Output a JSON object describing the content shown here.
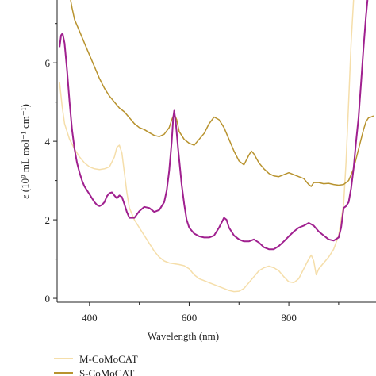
{
  "chart_data": {
    "type": "line",
    "xlabel": "Wavelength (nm)",
    "ylabel": "ε (10⁹ mL mol⁻¹ cm⁻¹)",
    "xlim": [
      335,
      975
    ],
    "ylim": [
      -0.1,
      7.6
    ],
    "x_ticks": [
      400,
      600,
      800
    ],
    "y_ticks": [
      0,
      2,
      4,
      6
    ],
    "grid": false,
    "legend_position": "bottom-left",
    "series": [
      {
        "name": "M-CoMoCAT",
        "color": "#f5deaa",
        "points": [
          [
            340,
            5.5
          ],
          [
            345,
            4.9
          ],
          [
            350,
            4.45
          ],
          [
            360,
            4.05
          ],
          [
            370,
            3.8
          ],
          [
            380,
            3.6
          ],
          [
            390,
            3.45
          ],
          [
            400,
            3.35
          ],
          [
            410,
            3.3
          ],
          [
            420,
            3.28
          ],
          [
            430,
            3.3
          ],
          [
            440,
            3.35
          ],
          [
            450,
            3.6
          ],
          [
            455,
            3.85
          ],
          [
            460,
            3.9
          ],
          [
            465,
            3.7
          ],
          [
            470,
            3.2
          ],
          [
            475,
            2.7
          ],
          [
            480,
            2.3
          ],
          [
            490,
            2.0
          ],
          [
            500,
            1.8
          ],
          [
            510,
            1.6
          ],
          [
            520,
            1.4
          ],
          [
            530,
            1.2
          ],
          [
            540,
            1.05
          ],
          [
            550,
            0.95
          ],
          [
            560,
            0.9
          ],
          [
            570,
            0.88
          ],
          [
            580,
            0.86
          ],
          [
            590,
            0.83
          ],
          [
            600,
            0.75
          ],
          [
            610,
            0.6
          ],
          [
            620,
            0.5
          ],
          [
            640,
            0.4
          ],
          [
            660,
            0.3
          ],
          [
            680,
            0.2
          ],
          [
            690,
            0.17
          ],
          [
            700,
            0.18
          ],
          [
            710,
            0.25
          ],
          [
            720,
            0.4
          ],
          [
            730,
            0.55
          ],
          [
            740,
            0.7
          ],
          [
            750,
            0.78
          ],
          [
            760,
            0.82
          ],
          [
            770,
            0.78
          ],
          [
            780,
            0.7
          ],
          [
            790,
            0.55
          ],
          [
            800,
            0.42
          ],
          [
            810,
            0.4
          ],
          [
            820,
            0.5
          ],
          [
            830,
            0.75
          ],
          [
            840,
            1.0
          ],
          [
            845,
            1.1
          ],
          [
            850,
            0.95
          ],
          [
            855,
            0.6
          ],
          [
            860,
            0.75
          ],
          [
            870,
            0.9
          ],
          [
            880,
            1.05
          ],
          [
            890,
            1.25
          ],
          [
            900,
            1.6
          ],
          [
            910,
            2.4
          ],
          [
            915,
            3.5
          ],
          [
            920,
            5.0
          ],
          [
            925,
            6.5
          ],
          [
            930,
            7.6
          ]
        ]
      },
      {
        "name": "S-CoMoCAT",
        "color": "#b8932f",
        "points": [
          [
            362,
            7.6
          ],
          [
            365,
            7.4
          ],
          [
            370,
            7.1
          ],
          [
            380,
            6.8
          ],
          [
            390,
            6.5
          ],
          [
            400,
            6.2
          ],
          [
            410,
            5.9
          ],
          [
            420,
            5.6
          ],
          [
            430,
            5.35
          ],
          [
            440,
            5.15
          ],
          [
            450,
            5.0
          ],
          [
            460,
            4.85
          ],
          [
            470,
            4.75
          ],
          [
            480,
            4.6
          ],
          [
            490,
            4.45
          ],
          [
            500,
            4.35
          ],
          [
            510,
            4.3
          ],
          [
            520,
            4.22
          ],
          [
            530,
            4.15
          ],
          [
            540,
            4.12
          ],
          [
            550,
            4.18
          ],
          [
            560,
            4.35
          ],
          [
            565,
            4.55
          ],
          [
            570,
            4.7
          ],
          [
            575,
            4.55
          ],
          [
            580,
            4.25
          ],
          [
            590,
            4.05
          ],
          [
            600,
            3.95
          ],
          [
            610,
            3.9
          ],
          [
            620,
            4.05
          ],
          [
            630,
            4.2
          ],
          [
            640,
            4.45
          ],
          [
            650,
            4.62
          ],
          [
            660,
            4.55
          ],
          [
            670,
            4.35
          ],
          [
            680,
            4.05
          ],
          [
            690,
            3.75
          ],
          [
            700,
            3.5
          ],
          [
            710,
            3.4
          ],
          [
            720,
            3.65
          ],
          [
            725,
            3.75
          ],
          [
            730,
            3.68
          ],
          [
            740,
            3.45
          ],
          [
            750,
            3.3
          ],
          [
            760,
            3.18
          ],
          [
            770,
            3.12
          ],
          [
            780,
            3.1
          ],
          [
            790,
            3.15
          ],
          [
            800,
            3.2
          ],
          [
            810,
            3.15
          ],
          [
            820,
            3.1
          ],
          [
            830,
            3.05
          ],
          [
            840,
            2.9
          ],
          [
            845,
            2.85
          ],
          [
            850,
            2.95
          ],
          [
            860,
            2.95
          ],
          [
            870,
            2.92
          ],
          [
            880,
            2.93
          ],
          [
            890,
            2.9
          ],
          [
            900,
            2.88
          ],
          [
            910,
            2.9
          ],
          [
            920,
            3.0
          ],
          [
            930,
            3.3
          ],
          [
            940,
            3.8
          ],
          [
            950,
            4.3
          ],
          [
            955,
            4.5
          ],
          [
            960,
            4.6
          ],
          [
            965,
            4.62
          ],
          [
            970,
            4.65
          ]
        ]
      },
      {
        "name": "",
        "color": "#a0208f",
        "points": [
          [
            340,
            6.4
          ],
          [
            343,
            6.7
          ],
          [
            346,
            6.75
          ],
          [
            350,
            6.5
          ],
          [
            355,
            5.8
          ],
          [
            360,
            5.0
          ],
          [
            365,
            4.3
          ],
          [
            370,
            3.8
          ],
          [
            375,
            3.45
          ],
          [
            380,
            3.2
          ],
          [
            385,
            3.0
          ],
          [
            390,
            2.85
          ],
          [
            395,
            2.75
          ],
          [
            400,
            2.65
          ],
          [
            405,
            2.55
          ],
          [
            410,
            2.45
          ],
          [
            415,
            2.38
          ],
          [
            420,
            2.35
          ],
          [
            425,
            2.38
          ],
          [
            430,
            2.45
          ],
          [
            435,
            2.6
          ],
          [
            440,
            2.68
          ],
          [
            445,
            2.7
          ],
          [
            450,
            2.62
          ],
          [
            455,
            2.55
          ],
          [
            460,
            2.62
          ],
          [
            465,
            2.58
          ],
          [
            470,
            2.4
          ],
          [
            475,
            2.2
          ],
          [
            480,
            2.05
          ],
          [
            490,
            2.05
          ],
          [
            500,
            2.22
          ],
          [
            510,
            2.33
          ],
          [
            520,
            2.3
          ],
          [
            530,
            2.2
          ],
          [
            540,
            2.25
          ],
          [
            550,
            2.45
          ],
          [
            555,
            2.75
          ],
          [
            560,
            3.25
          ],
          [
            565,
            4.0
          ],
          [
            568,
            4.6
          ],
          [
            570,
            4.78
          ],
          [
            573,
            4.5
          ],
          [
            578,
            3.8
          ],
          [
            585,
            2.9
          ],
          [
            590,
            2.4
          ],
          [
            595,
            2.0
          ],
          [
            600,
            1.8
          ],
          [
            610,
            1.65
          ],
          [
            620,
            1.58
          ],
          [
            630,
            1.55
          ],
          [
            640,
            1.55
          ],
          [
            650,
            1.6
          ],
          [
            660,
            1.8
          ],
          [
            670,
            2.05
          ],
          [
            675,
            2.0
          ],
          [
            680,
            1.8
          ],
          [
            690,
            1.6
          ],
          [
            700,
            1.5
          ],
          [
            710,
            1.45
          ],
          [
            720,
            1.45
          ],
          [
            730,
            1.5
          ],
          [
            740,
            1.42
          ],
          [
            750,
            1.3
          ],
          [
            760,
            1.25
          ],
          [
            770,
            1.25
          ],
          [
            780,
            1.33
          ],
          [
            790,
            1.45
          ],
          [
            800,
            1.58
          ],
          [
            810,
            1.7
          ],
          [
            820,
            1.8
          ],
          [
            830,
            1.85
          ],
          [
            840,
            1.92
          ],
          [
            850,
            1.85
          ],
          [
            860,
            1.7
          ],
          [
            870,
            1.6
          ],
          [
            880,
            1.5
          ],
          [
            890,
            1.47
          ],
          [
            900,
            1.55
          ],
          [
            905,
            1.8
          ],
          [
            910,
            2.3
          ],
          [
            915,
            2.35
          ],
          [
            920,
            2.45
          ],
          [
            925,
            2.8
          ],
          [
            930,
            3.3
          ],
          [
            935,
            4.0
          ],
          [
            940,
            4.6
          ],
          [
            945,
            5.5
          ],
          [
            950,
            6.4
          ],
          [
            955,
            7.2
          ],
          [
            958,
            7.6
          ]
        ]
      }
    ]
  }
}
